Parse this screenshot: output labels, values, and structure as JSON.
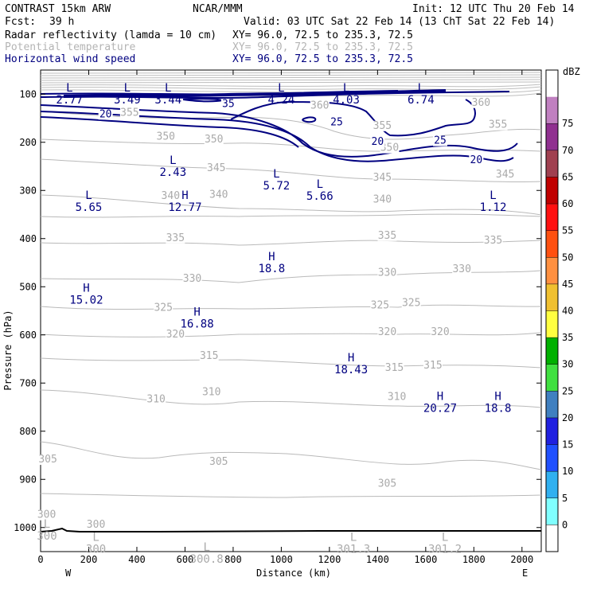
{
  "header": {
    "model": "CONTRAST 15km ARW",
    "org": "NCAR/MMM",
    "init": "Init: 12 UTC Thu 20 Feb 14",
    "fcst_label": "Fcst:",
    "fcst_value": "39 h",
    "valid": "Valid: 03 UTC Sat 22 Feb 14 (13 ChT Sat 22 Feb 14)",
    "fields": [
      {
        "name": "Radar reflectivity (lamda = 10 cm)",
        "xy": "XY=  96.0, 72.5 to 235.3, 72.5",
        "color": "#000000"
      },
      {
        "name": "Potential temperature",
        "xy": "XY=  96.0, 72.5 to 235.3, 72.5",
        "color": "#b4b4b4"
      },
      {
        "name": "Horizontal wind speed",
        "xy": "XY=  96.0, 72.5 to 235.3, 72.5",
        "color": "#000080"
      }
    ]
  },
  "chart_data": {
    "type": "cross-section",
    "xlabel": "Distance (km)",
    "ylabel": "Pressure (hPa)",
    "xlim": [
      0,
      2080
    ],
    "ylim": [
      1050,
      50
    ],
    "x_ticks": [
      "0",
      "200",
      "400",
      "600",
      "800",
      "1000",
      "1200",
      "1400",
      "1600",
      "1800",
      "2000"
    ],
    "y_ticks": [
      "100",
      "200",
      "300",
      "400",
      "500",
      "600",
      "700",
      "800",
      "900",
      "1000"
    ],
    "x_tick_values": [
      0,
      200,
      400,
      600,
      800,
      1000,
      1200,
      1400,
      1600,
      1800,
      2000
    ],
    "y_tick_values": [
      100,
      200,
      300,
      400,
      500,
      600,
      700,
      800,
      900,
      1000
    ],
    "west_label": "W",
    "east_label": "E",
    "colorbar": {
      "unit": "dBZ",
      "levels": [
        "0",
        "5",
        "10",
        "15",
        "20",
        "25",
        "30",
        "35",
        "40",
        "45",
        "50",
        "55",
        "60",
        "65",
        "70",
        "75"
      ],
      "colors": [
        "#ffffff",
        "#80ffff",
        "#30b0f0",
        "#2050ff",
        "#2020e0",
        "#4080c0",
        "#40e040",
        "#00b000",
        "#ffff40",
        "#f0c030",
        "#ff9040",
        "#ff5010",
        "#ff1010",
        "#c00000",
        "#a04050",
        "#903090",
        "#c080c0",
        "#ffffff"
      ]
    },
    "theta_labels": [
      {
        "text": "300",
        "x": 25,
        "p": 980
      },
      {
        "text": "300",
        "x": 230,
        "p": 1000
      },
      {
        "text": "305",
        "x": 30,
        "p": 865
      },
      {
        "text": "305",
        "x": 740,
        "p": 870
      },
      {
        "text": "305",
        "x": 1440,
        "p": 915
      },
      {
        "text": "310",
        "x": 480,
        "p": 740
      },
      {
        "text": "310",
        "x": 710,
        "p": 725
      },
      {
        "text": "310",
        "x": 1480,
        "p": 735
      },
      {
        "text": "315",
        "x": 700,
        "p": 650
      },
      {
        "text": "315",
        "x": 1470,
        "p": 675
      },
      {
        "text": "315",
        "x": 1630,
        "p": 670
      },
      {
        "text": "320",
        "x": 560,
        "p": 605
      },
      {
        "text": "320",
        "x": 1440,
        "p": 600
      },
      {
        "text": "320",
        "x": 1660,
        "p": 600
      },
      {
        "text": "325",
        "x": 510,
        "p": 550
      },
      {
        "text": "325",
        "x": 1410,
        "p": 545
      },
      {
        "text": "325",
        "x": 1540,
        "p": 540
      },
      {
        "text": "330",
        "x": 630,
        "p": 490
      },
      {
        "text": "330",
        "x": 1440,
        "p": 477
      },
      {
        "text": "330",
        "x": 1750,
        "p": 470
      },
      {
        "text": "335",
        "x": 560,
        "p": 405
      },
      {
        "text": "335",
        "x": 1440,
        "p": 400
      },
      {
        "text": "335",
        "x": 1880,
        "p": 410
      },
      {
        "text": "340",
        "x": 540,
        "p": 318
      },
      {
        "text": "340",
        "x": 740,
        "p": 315
      },
      {
        "text": "340",
        "x": 1420,
        "p": 325
      },
      {
        "text": "345",
        "x": 730,
        "p": 260
      },
      {
        "text": "345",
        "x": 1420,
        "p": 280
      },
      {
        "text": "345",
        "x": 1930,
        "p": 273
      },
      {
        "text": "350",
        "x": 520,
        "p": 195
      },
      {
        "text": "350",
        "x": 720,
        "p": 200
      },
      {
        "text": "350",
        "x": 1450,
        "p": 218
      },
      {
        "text": "355",
        "x": 370,
        "p": 145
      },
      {
        "text": "355",
        "x": 1420,
        "p": 172
      },
      {
        "text": "355",
        "x": 1900,
        "p": 170
      },
      {
        "text": "360",
        "x": 1160,
        "p": 130
      },
      {
        "text": "360",
        "x": 1830,
        "p": 124
      }
    ],
    "wind_labels": [
      {
        "text": "35",
        "x": 780,
        "p": 127
      },
      {
        "text": "25",
        "x": 1230,
        "p": 165
      },
      {
        "text": "20",
        "x": 270,
        "p": 148
      },
      {
        "text": "20",
        "x": 1400,
        "p": 205
      },
      {
        "text": "20",
        "x": 1810,
        "p": 243
      },
      {
        "text": "25",
        "x": 1660,
        "p": 203
      }
    ],
    "extrema": [
      {
        "type": "L",
        "value": "2.77",
        "x": 120,
        "p": 95,
        "color": "navy"
      },
      {
        "type": "L",
        "value": "3.49",
        "x": 360,
        "p": 95,
        "color": "navy"
      },
      {
        "type": "L",
        "value": "3.44",
        "x": 530,
        "p": 95,
        "color": "navy"
      },
      {
        "type": "L",
        "value": "4.24",
        "x": 1000,
        "p": 95,
        "color": "navy"
      },
      {
        "type": "L",
        "value": "4.03",
        "x": 1270,
        "p": 95,
        "color": "navy"
      },
      {
        "type": "L",
        "value": "6.74",
        "x": 1580,
        "p": 95,
        "color": "navy"
      },
      {
        "type": "L",
        "value": "2.43",
        "x": 550,
        "p": 245,
        "color": "navy"
      },
      {
        "type": "L",
        "value": "5.72",
        "x": 980,
        "p": 273,
        "color": "navy"
      },
      {
        "type": "L",
        "value": "5.66",
        "x": 1160,
        "p": 295,
        "color": "navy"
      },
      {
        "type": "L",
        "value": "5.65",
        "x": 200,
        "p": 318,
        "color": "navy"
      },
      {
        "type": "H",
        "value": "12.77",
        "x": 600,
        "p": 318,
        "color": "navy"
      },
      {
        "type": "L",
        "value": "1.12",
        "x": 1880,
        "p": 318,
        "color": "navy"
      },
      {
        "type": "H",
        "value": "18.8",
        "x": 960,
        "p": 445,
        "color": "navy"
      },
      {
        "type": "H",
        "value": "15.02",
        "x": 190,
        "p": 510,
        "color": "navy"
      },
      {
        "type": "H",
        "value": "16.88",
        "x": 650,
        "p": 560,
        "color": "navy"
      },
      {
        "type": "H",
        "value": "18.43",
        "x": 1290,
        "p": 655,
        "color": "navy"
      },
      {
        "type": "H",
        "value": "20.27",
        "x": 1660,
        "p": 735,
        "color": "navy"
      },
      {
        "type": "H",
        "value": "18.8",
        "x": 1900,
        "p": 735,
        "color": "navy"
      },
      {
        "type": "L",
        "value": "300",
        "x": 0,
        "p": 1000,
        "color": "grey"
      },
      {
        "type": "L",
        "value": "300",
        "x": 230,
        "p": 1028,
        "color": "grey"
      },
      {
        "type": "L",
        "value": "300.8",
        "x": 690,
        "p": 1048,
        "color": "grey"
      },
      {
        "type": "L",
        "value": "301.3",
        "x": 1300,
        "p": 1028,
        "color": "grey"
      },
      {
        "type": "L",
        "value": "301.2",
        "x": 1680,
        "p": 1028,
        "color": "grey"
      }
    ]
  }
}
